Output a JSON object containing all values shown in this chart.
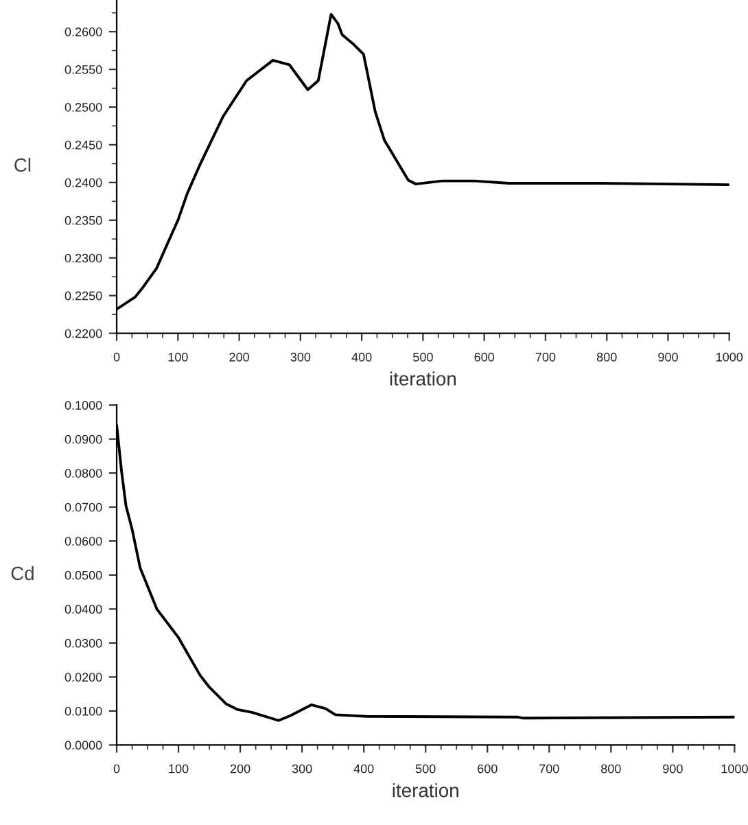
{
  "chart_data": [
    {
      "type": "line",
      "xlabel": "iteration",
      "ylabel": "Cl",
      "grid": false,
      "marker": "none",
      "line_style": "solid",
      "xlim": [
        0,
        1000
      ],
      "xticks": [
        0,
        100,
        200,
        300,
        400,
        500,
        600,
        700,
        800,
        900,
        1000
      ],
      "ylim": [
        0.22,
        0.2642
      ],
      "yticks": [
        {
          "value": 0.22,
          "label": "0.2200"
        },
        {
          "value": 0.225,
          "label": "0.2250"
        },
        {
          "value": 0.23,
          "label": "0.2300"
        },
        {
          "value": 0.235,
          "label": "0.2350"
        },
        {
          "value": 0.24,
          "label": "0.2400"
        },
        {
          "value": 0.245,
          "label": "0.2450"
        },
        {
          "value": 0.25,
          "label": "0.2500"
        },
        {
          "value": 0.255,
          "label": "0.2550"
        },
        {
          "value": 0.26,
          "label": "0.2600"
        }
      ],
      "series": [
        {
          "color": "#000000",
          "x": [
            0,
            30,
            41,
            65,
            84,
            100,
            115,
            135,
            174,
            212,
            255,
            282,
            312,
            329,
            350,
            361,
            368,
            387,
            403,
            422,
            437,
            476,
            488,
            531,
            584,
            640,
            787,
            1000
          ],
          "values": [
            0.2232,
            0.2248,
            0.2259,
            0.2286,
            0.2321,
            0.235,
            0.2385,
            0.2422,
            0.2488,
            0.2535,
            0.2562,
            0.2556,
            0.2523,
            0.2535,
            0.2623,
            0.2611,
            0.2596,
            0.2583,
            0.257,
            0.2494,
            0.2456,
            0.2403,
            0.2398,
            0.2402,
            0.2402,
            0.2399,
            0.2399,
            0.2397
          ]
        }
      ]
    },
    {
      "type": "line",
      "xlabel": "iteration",
      "ylabel": "Cd",
      "grid": false,
      "marker": "none",
      "line_style": "solid",
      "xlim": [
        0,
        1000
      ],
      "xticks": [
        0,
        100,
        200,
        300,
        400,
        500,
        600,
        700,
        800,
        900,
        1000
      ],
      "ylim": [
        0,
        0.1
      ],
      "yticks": [
        {
          "value": 0,
          "label": "0.0000"
        },
        {
          "value": 0.01,
          "label": "0.0100"
        },
        {
          "value": 0.02,
          "label": "0.0200"
        },
        {
          "value": 0.03,
          "label": "0.0300"
        },
        {
          "value": 0.04,
          "label": "0.0400"
        },
        {
          "value": 0.05,
          "label": "0.0500"
        },
        {
          "value": 0.06,
          "label": "0.0600"
        },
        {
          "value": 0.07,
          "label": "0.0700"
        },
        {
          "value": 0.08,
          "label": "0.0800"
        },
        {
          "value": 0.09,
          "label": "0.0900"
        },
        {
          "value": 0.1,
          "label": "0.1000"
        }
      ],
      "series": [
        {
          "color": "#000000",
          "x": [
            0,
            8,
            15,
            25,
            38,
            52,
            65,
            100,
            135,
            150,
            177,
            196,
            219,
            262,
            281,
            315,
            338,
            354,
            404,
            650,
            658,
            1000
          ],
          "values": [
            0.0941,
            0.0803,
            0.0704,
            0.0634,
            0.0521,
            0.0458,
            0.04,
            0.0316,
            0.0205,
            0.017,
            0.0121,
            0.0104,
            0.0096,
            0.0072,
            0.0086,
            0.0118,
            0.0107,
            0.0089,
            0.0084,
            0.0082,
            0.0079,
            0.0082
          ]
        }
      ]
    }
  ]
}
